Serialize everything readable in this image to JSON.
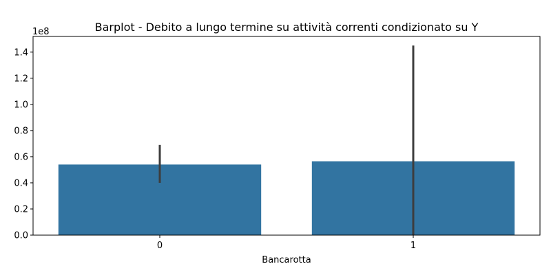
{
  "chart_data": {
    "type": "bar",
    "title": "Barplot - Debito a lungo termine su attività correnti condizionato su Y",
    "xlabel": "Bancarotta",
    "ylabel": "",
    "scale_label": "1e8",
    "categories": [
      "0",
      "1"
    ],
    "values": [
      54000000,
      56500000
    ],
    "error_bars": [
      {
        "low": 40000000,
        "high": 69000000
      },
      {
        "low": 0,
        "high": 145000000
      }
    ],
    "ylim": [
      0,
      152000000
    ],
    "yticks": [
      0,
      20000000,
      40000000,
      60000000,
      80000000,
      100000000,
      120000000,
      140000000
    ],
    "ytick_labels": [
      "0.0",
      "0.2",
      "0.4",
      "0.6",
      "0.8",
      "1.0",
      "1.2",
      "1.4"
    ],
    "grid": false,
    "colors": {
      "bar": "#3274a1",
      "error": "#3d3d3d",
      "axis": "#000000"
    }
  }
}
